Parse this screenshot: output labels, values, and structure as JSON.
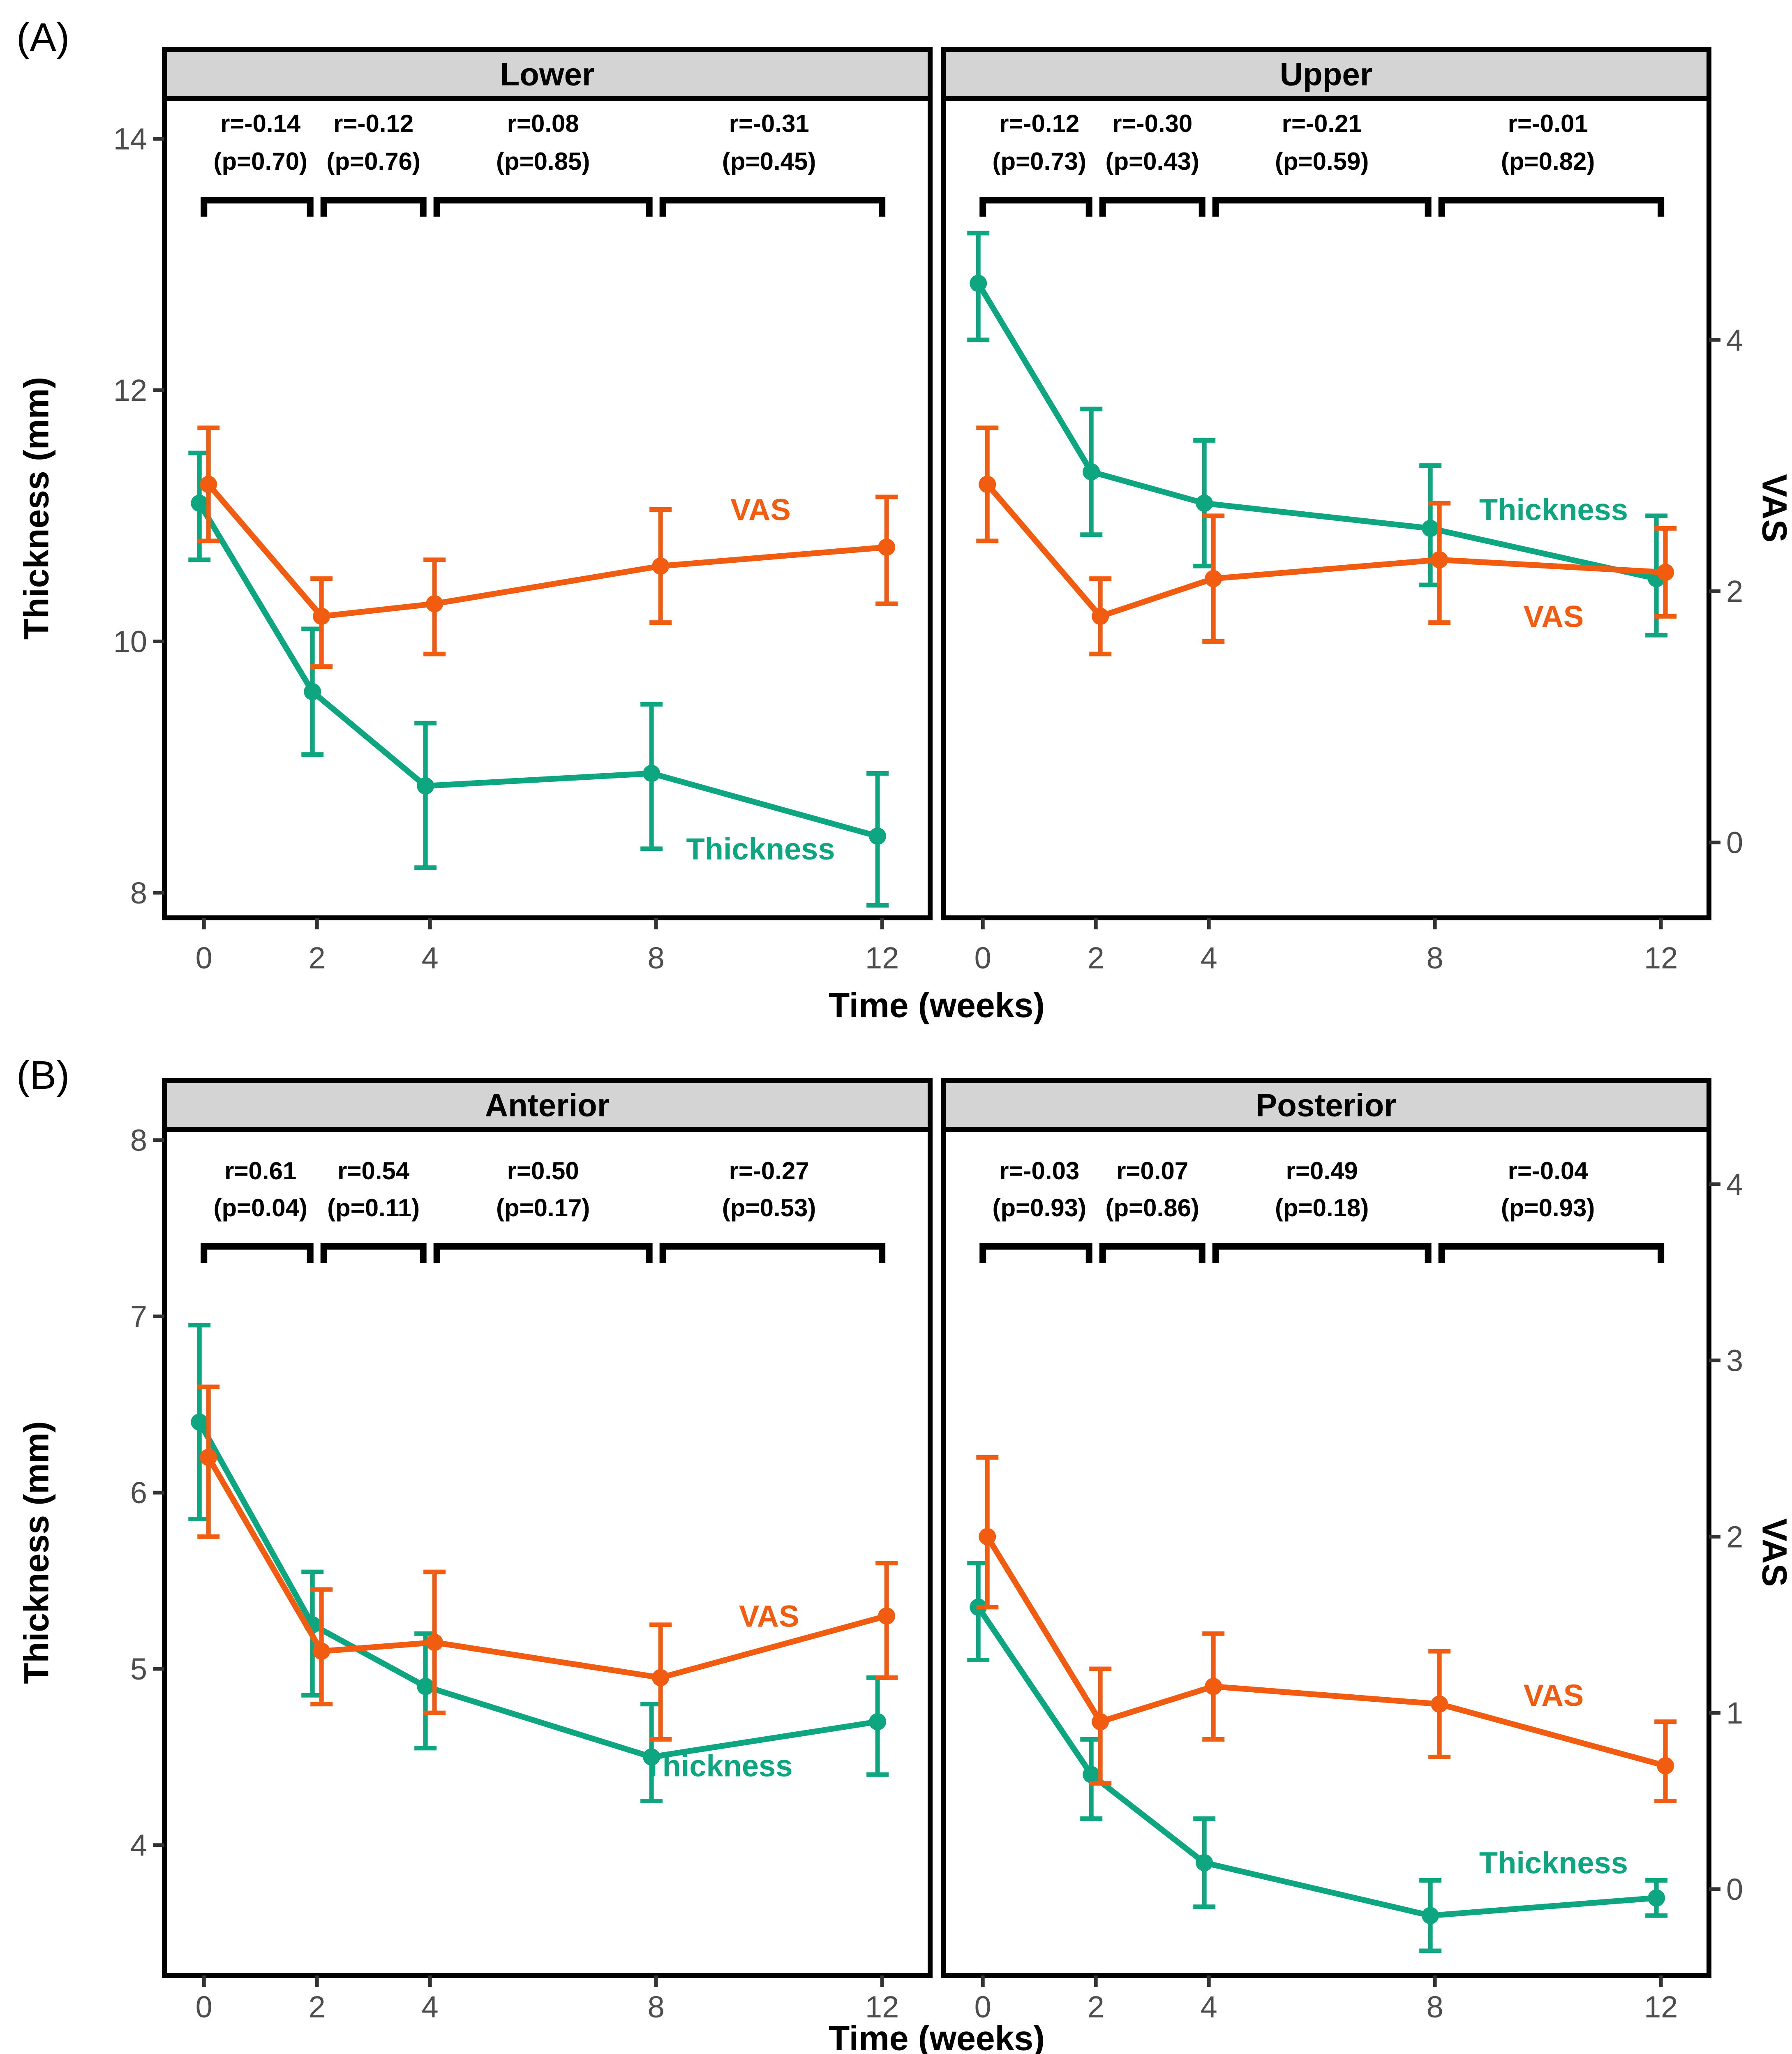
{
  "chart_data": {
    "type": "line",
    "description": "Two-panel faceted figure of mean Thickness (mm) and VAS over time with error bars and interval correlation annotations",
    "xlabel": "Time (weeks)",
    "x_ticks": [
      0,
      2,
      4,
      8,
      12
    ],
    "x_range": [
      -0.7,
      12.85
    ],
    "grid": "off",
    "legend": "inline-series-labels",
    "colors": {
      "thickness": "#0DA680",
      "vas": "#F25C11",
      "axis_text": "#4d4d4d",
      "strip_bg": "#D4D4D4",
      "border": "#000000",
      "annotation_text": "#000000",
      "background": "#ffffff"
    },
    "panels": [
      {
        "tag": "(A)",
        "ylabel_left": "Thickness (mm)",
        "ylabel_right": "VAS",
        "y_range": [
          7.8,
          14.32
        ],
        "yticks_left": [
          8,
          10,
          12,
          14
        ],
        "yticks_right": [
          0,
          2,
          4
        ],
        "vas_axis_offset": 8.4,
        "facets": [
          {
            "title": "Lower",
            "correlations": [
              {
                "span": [
                  0,
                  2
                ],
                "center": 1,
                "r": "r=-0.14",
                "p": "(p=0.70)"
              },
              {
                "span": [
                  2,
                  4
                ],
                "center": 3,
                "r": "r=-0.12",
                "p": "(p=0.76)"
              },
              {
                "span": [
                  4,
                  8
                ],
                "center": 6,
                "r": "r=0.08",
                "p": "(p=0.85)"
              },
              {
                "span": [
                  8,
                  12
                ],
                "center": 10,
                "r": "r=-0.31",
                "p": "(p=0.45)"
              }
            ],
            "thickness": {
              "label": "Thickness",
              "x": [
                0,
                2,
                4,
                8,
                12
              ],
              "mean": [
                11.1,
                9.6,
                8.85,
                8.95,
                8.45
              ],
              "lo": [
                10.65,
                9.1,
                8.2,
                8.35,
                7.9
              ],
              "hi": [
                11.5,
                10.1,
                9.35,
                9.5,
                8.95
              ],
              "label_at": [
                9.85,
                8.35
              ]
            },
            "vas": {
              "label": "VAS",
              "x": [
                0,
                2,
                4,
                8,
                12
              ],
              "mean": [
                2.85,
                1.8,
                1.9,
                2.2,
                2.35
              ],
              "lo": [
                2.4,
                1.4,
                1.5,
                1.75,
                1.9
              ],
              "hi": [
                3.3,
                2.1,
                2.25,
                2.65,
                2.75
              ],
              "label_at": [
                9.85,
                11.05
              ]
            }
          },
          {
            "title": "Upper",
            "correlations": [
              {
                "span": [
                  0,
                  2
                ],
                "center": 1,
                "r": "r=-0.12",
                "p": "(p=0.73)"
              },
              {
                "span": [
                  2,
                  4
                ],
                "center": 3,
                "r": "r=-0.30",
                "p": "(p=0.43)"
              },
              {
                "span": [
                  4,
                  8
                ],
                "center": 6,
                "r": "r=-0.21",
                "p": "(p=0.59)"
              },
              {
                "span": [
                  8,
                  12
                ],
                "center": 10,
                "r": "r=-0.01",
                "p": "(p=0.82)"
              }
            ],
            "thickness": {
              "label": "Thickness",
              "x": [
                0,
                2,
                4,
                8,
                12
              ],
              "mean": [
                12.85,
                11.35,
                11.1,
                10.9,
                10.5
              ],
              "lo": [
                12.4,
                10.85,
                10.6,
                10.45,
                10.05
              ],
              "hi": [
                13.25,
                11.85,
                11.6,
                11.4,
                11.0
              ],
              "label_at": [
                10.1,
                11.05
              ]
            },
            "vas": {
              "label": "VAS",
              "x": [
                0,
                2,
                4,
                8,
                12
              ],
              "mean": [
                2.85,
                1.8,
                2.1,
                2.25,
                2.15
              ],
              "lo": [
                2.4,
                1.5,
                1.6,
                1.75,
                1.8
              ],
              "hi": [
                3.3,
                2.1,
                2.6,
                2.7,
                2.5
              ],
              "label_at": [
                10.1,
                10.2
              ]
            }
          }
        ]
      },
      {
        "tag": "(B)",
        "ylabel_left": "Thickness (mm)",
        "ylabel_right": "VAS",
        "y_range": [
          3.26,
          8.06
        ],
        "yticks_left": [
          4,
          5,
          6,
          7,
          8
        ],
        "yticks_right": [
          0,
          1,
          2,
          3,
          4
        ],
        "vas_axis_offset": 3.75,
        "facets": [
          {
            "title": "Anterior",
            "correlations": [
              {
                "span": [
                  0,
                  2
                ],
                "center": 1,
                "r": "r=0.61",
                "p": "(p=0.04)"
              },
              {
                "span": [
                  2,
                  4
                ],
                "center": 3,
                "r": "r=0.54",
                "p": "(p=0.11)"
              },
              {
                "span": [
                  4,
                  8
                ],
                "center": 6,
                "r": "r=0.50",
                "p": "(p=0.17)"
              },
              {
                "span": [
                  8,
                  12
                ],
                "center": 10,
                "r": "r=-0.27",
                "p": "(p=0.53)"
              }
            ],
            "thickness": {
              "label": "Thickness",
              "x": [
                0,
                2,
                4,
                8,
                12
              ],
              "mean": [
                6.4,
                5.25,
                4.9,
                4.5,
                4.7
              ],
              "lo": [
                5.85,
                4.85,
                4.55,
                4.25,
                4.4
              ],
              "hi": [
                6.95,
                5.55,
                5.2,
                4.8,
                4.95
              ],
              "label_at": [
                9.1,
                4.45
              ]
            },
            "vas": {
              "label": "VAS",
              "x": [
                0,
                2,
                4,
                8,
                12
              ],
              "mean": [
                2.45,
                1.35,
                1.4,
                1.2,
                1.55
              ],
              "lo": [
                2.0,
                1.05,
                1.0,
                0.85,
                1.2
              ],
              "hi": [
                2.85,
                1.7,
                1.8,
                1.5,
                1.85
              ],
              "label_at": [
                10.0,
                5.3
              ]
            }
          },
          {
            "title": "Posterior",
            "correlations": [
              {
                "span": [
                  0,
                  2
                ],
                "center": 1,
                "r": "r=-0.03",
                "p": "(p=0.93)"
              },
              {
                "span": [
                  2,
                  4
                ],
                "center": 3,
                "r": "r=0.07",
                "p": "(p=0.86)"
              },
              {
                "span": [
                  4,
                  8
                ],
                "center": 6,
                "r": "r=0.49",
                "p": "(p=0.18)"
              },
              {
                "span": [
                  8,
                  12
                ],
                "center": 10,
                "r": "r=-0.04",
                "p": "(p=0.93)"
              }
            ],
            "thickness": {
              "label": "Thickness",
              "x": [
                0,
                2,
                4,
                8,
                12
              ],
              "mean": [
                5.35,
                4.4,
                3.9,
                3.6,
                3.7
              ],
              "lo": [
                5.05,
                4.15,
                3.65,
                3.4,
                3.6
              ],
              "hi": [
                5.6,
                4.6,
                4.15,
                3.8,
                3.8
              ],
              "label_at": [
                10.1,
                3.9
              ]
            },
            "vas": {
              "label": "VAS",
              "x": [
                0,
                2,
                4,
                8,
                12
              ],
              "mean": [
                2.0,
                0.95,
                1.15,
                1.05,
                0.7
              ],
              "lo": [
                1.6,
                0.6,
                0.85,
                0.75,
                0.5
              ],
              "hi": [
                2.45,
                1.25,
                1.45,
                1.35,
                0.95
              ],
              "label_at": [
                10.1,
                4.85
              ]
            }
          }
        ]
      }
    ]
  }
}
